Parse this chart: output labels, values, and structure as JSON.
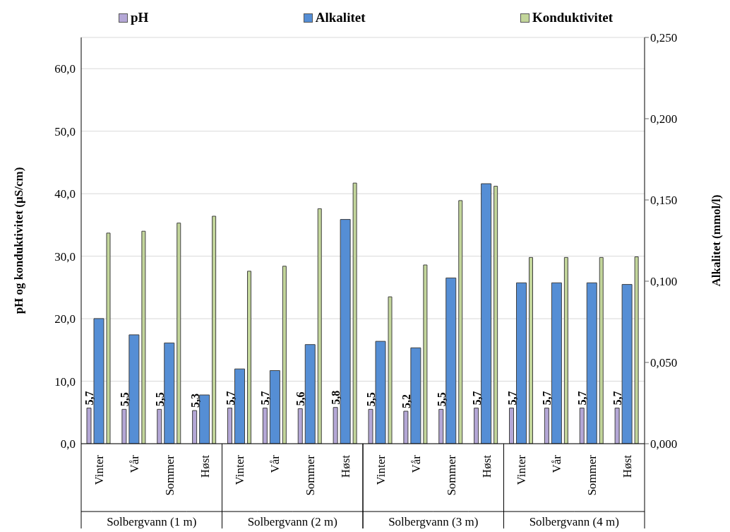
{
  "chart_data": {
    "type": "bar",
    "ylabel": "pH og konduktivitet (µS/cm)",
    "y2label": "Alkalitet  (mmol/l)",
    "categories": [
      "Vinter",
      "Vår",
      "Sommer",
      "Høst",
      "Vinter",
      "Vår",
      "Sommer",
      "Høst",
      "Vinter",
      "Vår",
      "Sommer",
      "Høst",
      "Vinter",
      "Vår",
      "Sommer",
      "Høst"
    ],
    "annotations": [
      "Solbergvann (1 m)",
      "Solbergvann (2 m)",
      "Solbergvann (3 m)",
      "Solbergvann (4 m)"
    ],
    "series": [
      {
        "name": "pH",
        "color": "#b4a7d6",
        "values": [
          5.7,
          5.5,
          5.5,
          5.3,
          5.7,
          5.7,
          5.6,
          5.8,
          5.5,
          5.2,
          5.5,
          5.7,
          5.7,
          5.7,
          5.7,
          5.7
        ],
        "value_labels": [
          "5,7",
          "5,5",
          "5,5",
          "5,3",
          "5,7",
          "5,7",
          "5,6",
          "5,8",
          "5,5",
          "5,2",
          "5,5",
          "5,7",
          "5,7",
          "5,7",
          "5,7",
          "5,7"
        ]
      },
      {
        "name": "Alkalitet",
        "color": "#558ed5",
        "axis": "y2",
        "values": [
          0.077,
          0.067,
          0.062,
          0.03,
          0.046,
          0.045,
          0.061,
          0.138,
          0.063,
          0.059,
          0.102,
          0.16,
          0.099,
          0.099,
          0.099,
          0.098
        ]
      },
      {
        "name": "Konduktivitet",
        "color": "#c3d69b",
        "values": [
          33.7,
          34.0,
          35.3,
          36.4,
          27.6,
          28.4,
          37.6,
          41.7,
          23.5,
          28.6,
          38.9,
          41.2,
          29.8,
          29.8,
          29.8,
          29.9
        ]
      }
    ],
    "ylim": [
      0,
      65
    ],
    "yticks": [
      {
        "value": 0,
        "label": "0,0"
      },
      {
        "value": 10,
        "label": "10,0"
      },
      {
        "value": 20,
        "label": "20,0"
      },
      {
        "value": 30,
        "label": "30,0"
      },
      {
        "value": 40,
        "label": "40,0"
      },
      {
        "value": 50,
        "label": "50,0"
      },
      {
        "value": 60,
        "label": "60,0"
      }
    ],
    "y2lim": [
      0,
      0.25
    ],
    "y2ticks": [
      {
        "value": 0,
        "label": "0,000"
      },
      {
        "value": 0.05,
        "label": "0,050"
      },
      {
        "value": 0.1,
        "label": "0,100"
      },
      {
        "value": 0.15,
        "label": "0,150"
      },
      {
        "value": 0.2,
        "label": "0,200"
      },
      {
        "value": 0.25,
        "label": "0,250"
      }
    ],
    "grid": "y",
    "legend": "top"
  }
}
